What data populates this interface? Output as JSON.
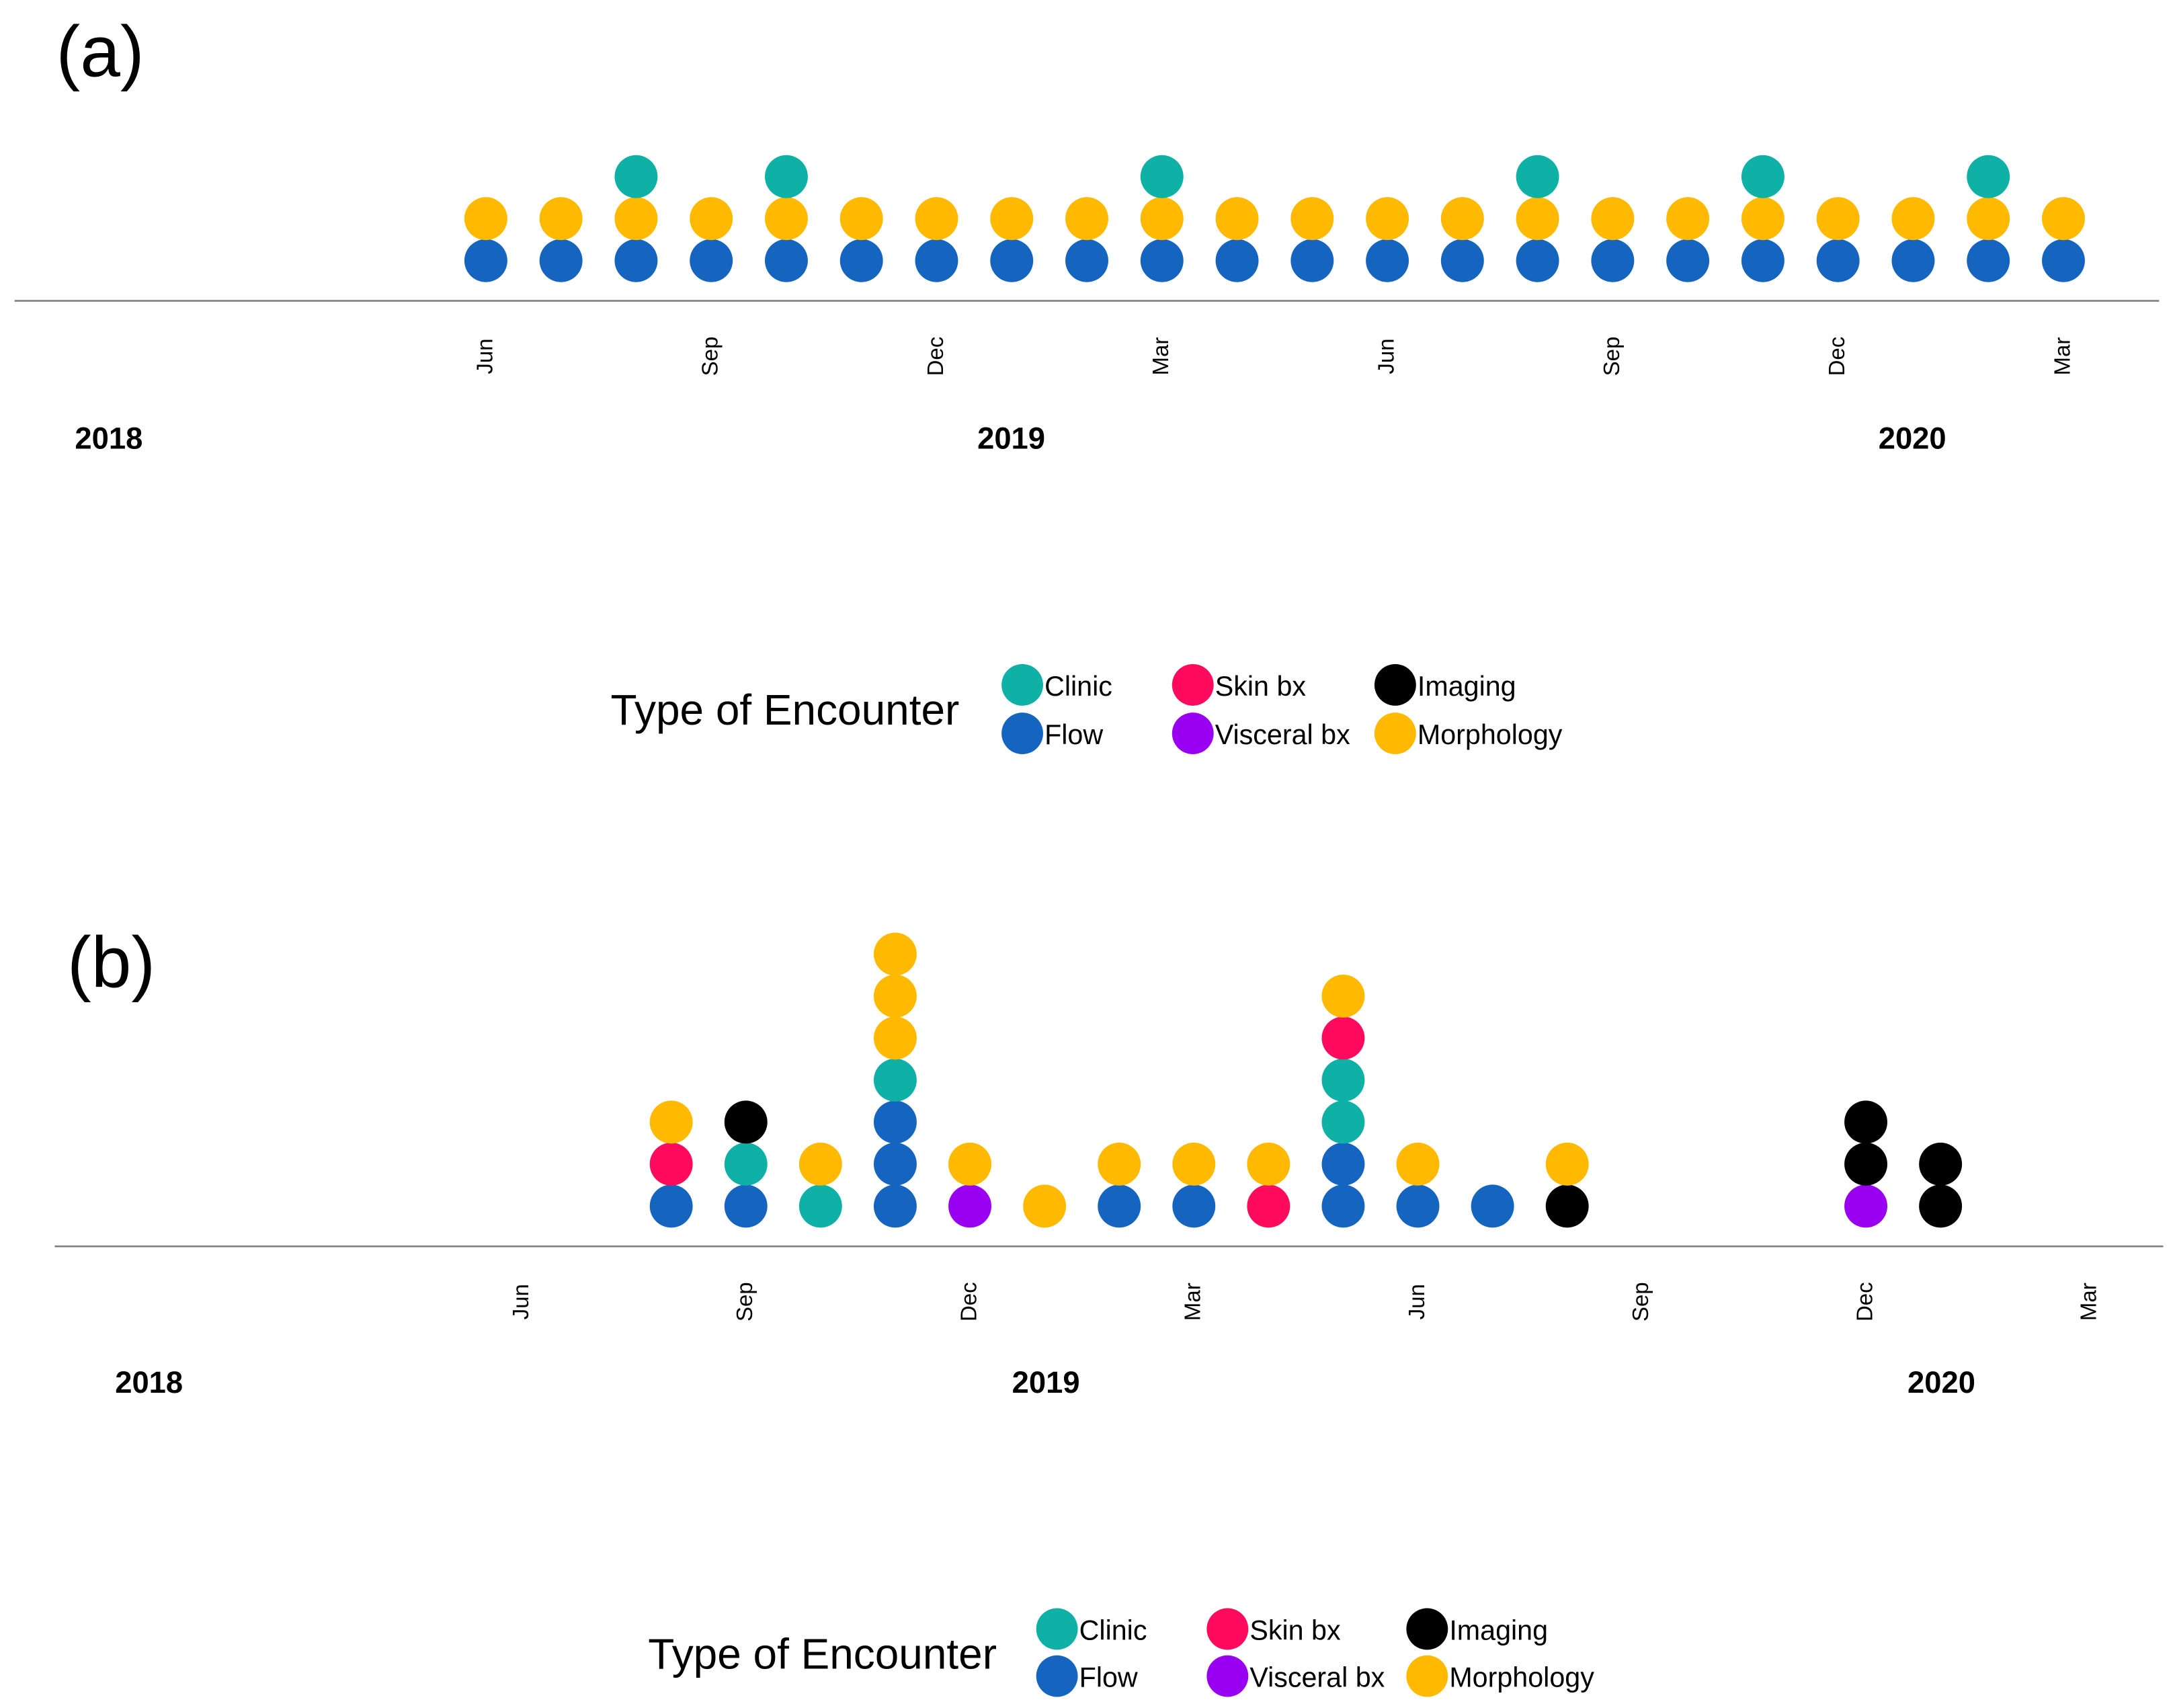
{
  "colors": {
    "Clinic": "#0FB1A6",
    "Flow": "#1565C0",
    "Skin bx": "#FF0A5C",
    "Visceral bx": "#9900F2",
    "Imaging": "#000000",
    "Morphology": "#FFBA00"
  },
  "chart_data": [
    {
      "type": "scatter",
      "panel_label": "(a)",
      "x_ticks": [
        "Jun",
        "Sep",
        "Dec",
        "Mar",
        "Jun",
        "Sep",
        "Dec",
        "Mar"
      ],
      "x_tick_months": [
        "2018-06",
        "2018-09",
        "2018-12",
        "2019-03",
        "2019-06",
        "2019-09",
        "2019-12",
        "2020-03"
      ],
      "years": [
        "2018",
        "2019",
        "2020"
      ],
      "legend_title": "Type of Encounter",
      "legend": [
        "Clinic",
        "Skin bx",
        "Imaging",
        "Flow",
        "Visceral bx",
        "Morphology"
      ],
      "encounters": [
        {
          "month": "2018-06",
          "stack": [
            "Flow",
            "Morphology"
          ]
        },
        {
          "month": "2018-07",
          "stack": [
            "Flow",
            "Morphology"
          ]
        },
        {
          "month": "2018-08",
          "stack": [
            "Flow",
            "Morphology",
            "Clinic"
          ]
        },
        {
          "month": "2018-09",
          "stack": [
            "Flow",
            "Morphology"
          ]
        },
        {
          "month": "2018-10",
          "stack": [
            "Flow",
            "Morphology",
            "Clinic"
          ]
        },
        {
          "month": "2018-11",
          "stack": [
            "Flow",
            "Morphology"
          ]
        },
        {
          "month": "2018-12",
          "stack": [
            "Flow",
            "Morphology"
          ]
        },
        {
          "month": "2019-01",
          "stack": [
            "Flow",
            "Morphology"
          ]
        },
        {
          "month": "2019-02",
          "stack": [
            "Flow",
            "Morphology"
          ]
        },
        {
          "month": "2019-03",
          "stack": [
            "Flow",
            "Morphology",
            "Clinic"
          ]
        },
        {
          "month": "2019-04",
          "stack": [
            "Flow",
            "Morphology"
          ]
        },
        {
          "month": "2019-05",
          "stack": [
            "Flow",
            "Morphology"
          ]
        },
        {
          "month": "2019-06",
          "stack": [
            "Flow",
            "Morphology"
          ]
        },
        {
          "month": "2019-07",
          "stack": [
            "Flow",
            "Morphology"
          ]
        },
        {
          "month": "2019-08",
          "stack": [
            "Flow",
            "Morphology",
            "Clinic"
          ]
        },
        {
          "month": "2019-09",
          "stack": [
            "Flow",
            "Morphology"
          ]
        },
        {
          "month": "2019-10",
          "stack": [
            "Flow",
            "Morphology"
          ]
        },
        {
          "month": "2019-11",
          "stack": [
            "Flow",
            "Morphology",
            "Clinic"
          ]
        },
        {
          "month": "2019-12",
          "stack": [
            "Flow",
            "Morphology"
          ]
        },
        {
          "month": "2020-01",
          "stack": [
            "Flow",
            "Morphology"
          ]
        },
        {
          "month": "2020-02",
          "stack": [
            "Flow",
            "Morphology",
            "Clinic"
          ]
        },
        {
          "month": "2020-03",
          "stack": [
            "Flow",
            "Morphology"
          ]
        }
      ]
    },
    {
      "type": "scatter",
      "panel_label": "(b)",
      "x_ticks": [
        "Jun",
        "Sep",
        "Dec",
        "Mar",
        "Jun",
        "Sep",
        "Dec",
        "Mar"
      ],
      "x_tick_months": [
        "2018-06",
        "2018-09",
        "2018-12",
        "2019-03",
        "2019-06",
        "2019-09",
        "2019-12",
        "2020-03"
      ],
      "years": [
        "2018",
        "2019",
        "2020"
      ],
      "legend_title": "Type of Encounter",
      "legend": [
        "Clinic",
        "Skin bx",
        "Imaging",
        "Flow",
        "Visceral bx",
        "Morphology"
      ],
      "encounters": [
        {
          "month": "2018-08",
          "stack": [
            "Flow",
            "Skin bx",
            "Morphology"
          ]
        },
        {
          "month": "2018-09",
          "stack": [
            "Flow",
            "Clinic",
            "Imaging"
          ]
        },
        {
          "month": "2018-10",
          "stack": [
            "Clinic",
            "Morphology"
          ]
        },
        {
          "month": "2018-11",
          "stack": [
            "Flow",
            "Flow",
            "Flow",
            "Clinic",
            "Morphology",
            "Morphology",
            "Morphology"
          ]
        },
        {
          "month": "2018-12",
          "stack": [
            "Visceral bx",
            "Morphology"
          ]
        },
        {
          "month": "2019-01",
          "stack": [
            "Morphology"
          ]
        },
        {
          "month": "2019-02",
          "stack": [
            "Flow",
            "Morphology"
          ]
        },
        {
          "month": "2019-03",
          "stack": [
            "Flow",
            "Morphology"
          ]
        },
        {
          "month": "2019-04",
          "stack": [
            "Skin bx",
            "Morphology"
          ]
        },
        {
          "month": "2019-05",
          "stack": [
            "Flow",
            "Flow",
            "Clinic",
            "Clinic",
            "Skin bx",
            "Morphology"
          ]
        },
        {
          "month": "2019-06",
          "stack": [
            "Flow",
            "Morphology"
          ]
        },
        {
          "month": "2019-07",
          "stack": [
            "Flow"
          ]
        },
        {
          "month": "2019-08",
          "stack": [
            "Imaging",
            "Morphology"
          ]
        },
        {
          "month": "2019-12",
          "stack": [
            "Visceral bx",
            "Imaging",
            "Imaging"
          ]
        },
        {
          "month": "2020-01",
          "stack": [
            "Imaging",
            "Imaging"
          ]
        }
      ]
    }
  ]
}
